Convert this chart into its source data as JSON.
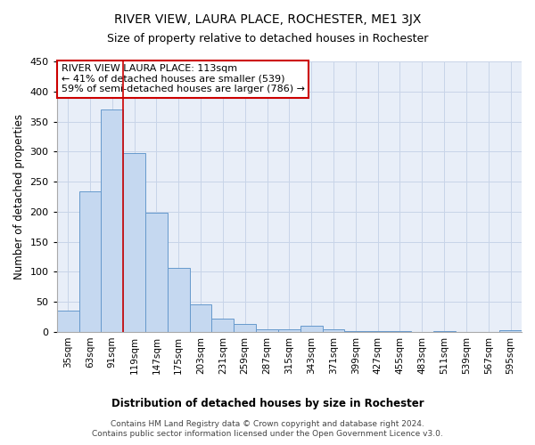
{
  "title": "RIVER VIEW, LAURA PLACE, ROCHESTER, ME1 3JX",
  "subtitle": "Size of property relative to detached houses in Rochester",
  "xlabel": "Distribution of detached houses by size in Rochester",
  "ylabel": "Number of detached properties",
  "bar_color": "#c5d8f0",
  "bar_edge_color": "#6699cc",
  "categories": [
    "35sqm",
    "63sqm",
    "91sqm",
    "119sqm",
    "147sqm",
    "175sqm",
    "203sqm",
    "231sqm",
    "259sqm",
    "287sqm",
    "315sqm",
    "343sqm",
    "371sqm",
    "399sqm",
    "427sqm",
    "455sqm",
    "483sqm",
    "511sqm",
    "539sqm",
    "567sqm",
    "595sqm"
  ],
  "values": [
    35,
    234,
    370,
    298,
    198,
    106,
    46,
    22,
    14,
    4,
    4,
    10,
    4,
    1,
    1,
    1,
    0,
    1,
    0,
    0,
    3
  ],
  "ylim": [
    0,
    450
  ],
  "yticks": [
    0,
    50,
    100,
    150,
    200,
    250,
    300,
    350,
    400,
    450
  ],
  "property_line_x": 2.5,
  "annotation_title": "RIVER VIEW LAURA PLACE: 113sqm",
  "annotation_line1": "← 41% of detached houses are smaller (539)",
  "annotation_line2": "59% of semi-detached houses are larger (786) →",
  "annotation_box_color": "#ffffff",
  "annotation_box_edge": "#cc0000",
  "property_line_color": "#cc0000",
  "grid_color": "#c8d4e8",
  "background_color": "#e8eef8",
  "footer_line1": "Contains HM Land Registry data © Crown copyright and database right 2024.",
  "footer_line2": "Contains public sector information licensed under the Open Government Licence v3.0."
}
